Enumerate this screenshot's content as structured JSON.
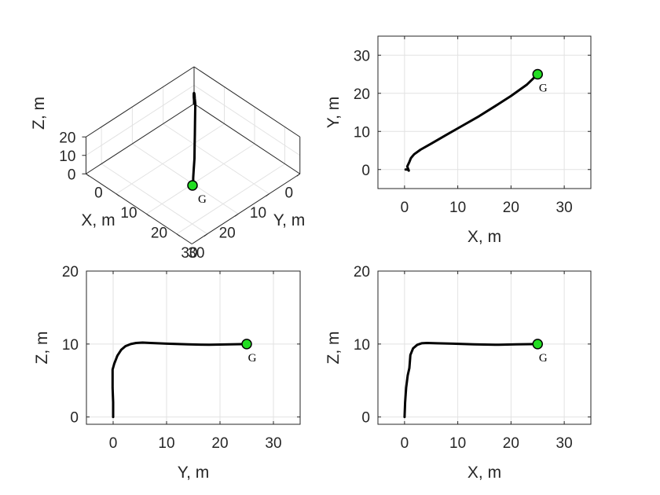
{
  "chart_data": [
    {
      "type": "line3d",
      "panel": "3d-view",
      "xlabel": "X, m",
      "ylabel": "Y, m",
      "zlabel": "Z, m",
      "xlim": [
        0,
        35
      ],
      "ylim": [
        0,
        35
      ],
      "zlim": [
        0,
        20
      ],
      "xticks": [
        0,
        10,
        20,
        30
      ],
      "yticks": [
        0,
        10,
        20,
        30
      ],
      "zticks": [
        0,
        10,
        20
      ],
      "grid": true,
      "series": [
        {
          "x": [
            0,
            0.1,
            0.3,
            0.5,
            0.7,
            1,
            1.5,
            2.2,
            3.2,
            4.5,
            6.5,
            9,
            12,
            15,
            18,
            21,
            23,
            24,
            25
          ],
          "y": [
            0,
            0.1,
            0.2,
            0.4,
            0.6,
            1,
            1.6,
            2.4,
            3.5,
            5,
            7,
            9.5,
            12.5,
            15.5,
            18.5,
            21.3,
            23.2,
            24.2,
            25
          ],
          "z": [
            0,
            2,
            4,
            6,
            7,
            8,
            9,
            9.7,
            10.1,
            10.3,
            10.2,
            10.05,
            9.95,
            9.9,
            9.9,
            9.95,
            10,
            10,
            10
          ]
        }
      ],
      "goal": {
        "x": 25,
        "y": 25,
        "z": 10,
        "label": "G"
      }
    },
    {
      "type": "line",
      "panel": "xy-view",
      "xlabel": "X, m",
      "ylabel": "Y, m",
      "xlim": [
        -5,
        35
      ],
      "ylim": [
        -5,
        35
      ],
      "xticks": [
        0,
        10,
        20,
        30
      ],
      "yticks": [
        0,
        10,
        20,
        30
      ],
      "grid": true,
      "series": [
        {
          "x": [
            0.2,
            0.6,
            0.8,
            0.5,
            0.9,
            1.2,
            1.8,
            3,
            5,
            8,
            11,
            14,
            17,
            20,
            23,
            25
          ],
          "y": [
            0,
            0,
            -0.3,
            0.8,
            2,
            3,
            4,
            5.2,
            6.8,
            9.2,
            11.6,
            14,
            16.6,
            19.3,
            22.3,
            25
          ]
        }
      ],
      "goal": {
        "x": 25,
        "y": 25,
        "label": "G"
      }
    },
    {
      "type": "line",
      "panel": "yz-view",
      "xlabel": "Y, m",
      "ylabel": "Z, m",
      "xlim": [
        -5,
        35
      ],
      "ylim": [
        -1,
        20
      ],
      "xticks": [
        0,
        10,
        20,
        30
      ],
      "yticks": [
        0,
        10,
        20
      ],
      "grid": true,
      "series": [
        {
          "x": [
            0,
            0,
            -0.1,
            -0.1,
            0.2,
            0.8,
            1.5,
            2.3,
            3.3,
            4.3,
            5.5,
            7,
            10,
            14,
            18,
            22,
            25
          ],
          "y": [
            0,
            2,
            4,
            6.5,
            7.3,
            8.4,
            9.2,
            9.7,
            10,
            10.15,
            10.2,
            10.15,
            10.05,
            9.95,
            9.9,
            9.95,
            10
          ]
        }
      ],
      "goal": {
        "x": 25,
        "y": 10,
        "label": "G"
      }
    },
    {
      "type": "line",
      "panel": "xz-view",
      "xlabel": "X, m",
      "ylabel": "Z, m",
      "xlim": [
        -5,
        35
      ],
      "ylim": [
        -1,
        20
      ],
      "xticks": [
        0,
        10,
        20,
        30
      ],
      "yticks": [
        0,
        10,
        20
      ],
      "grid": true,
      "series": [
        {
          "x": [
            0,
            0.1,
            0.3,
            0.6,
            0.9,
            1,
            1.1,
            1.6,
            2.4,
            3.2,
            4.2,
            6,
            9,
            13,
            17,
            21,
            25
          ],
          "y": [
            0,
            2,
            4,
            5.7,
            6.7,
            7.5,
            8.5,
            9.4,
            9.9,
            10.1,
            10.15,
            10.1,
            10.05,
            9.95,
            9.9,
            9.95,
            10
          ]
        }
      ],
      "goal": {
        "x": 25,
        "y": 10,
        "label": "G"
      }
    }
  ]
}
